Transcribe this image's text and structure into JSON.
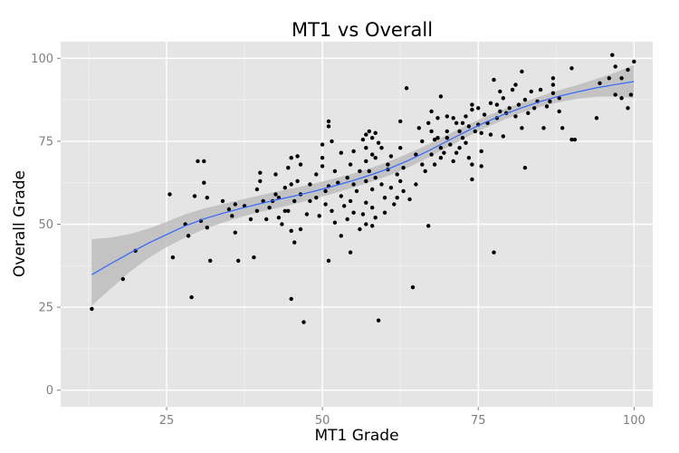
{
  "chart_data": {
    "type": "scatter",
    "title": "MT1 vs Overall",
    "xlabel": "MT1 Grade",
    "ylabel": "Overall Grade",
    "xlim": [
      8,
      103
    ],
    "ylim": [
      -5,
      105
    ],
    "xticks": [
      25,
      50,
      75,
      100
    ],
    "yticks": [
      0,
      25,
      50,
      75,
      100
    ],
    "grid": true,
    "legend": "none",
    "colors": {
      "panel": "#e5e5e5",
      "grid_major": "#ffffff",
      "grid_minor": "#f2f2f2",
      "points": "#000000",
      "smooth_line": "#3366ff",
      "ribbon": "#bdbdbd"
    },
    "points": [
      [
        13,
        24.5
      ],
      [
        18,
        33.5
      ],
      [
        20,
        42
      ],
      [
        25.5,
        59
      ],
      [
        26,
        40
      ],
      [
        28,
        50
      ],
      [
        28.5,
        46.5
      ],
      [
        29,
        28
      ],
      [
        29.5,
        58.5
      ],
      [
        30,
        69
      ],
      [
        30.5,
        51
      ],
      [
        31,
        69
      ],
      [
        31,
        62.5
      ],
      [
        31.5,
        58
      ],
      [
        31.5,
        49
      ],
      [
        32,
        39
      ],
      [
        34,
        57
      ],
      [
        35,
        54.5
      ],
      [
        35.5,
        52.5
      ],
      [
        36,
        47.5
      ],
      [
        36,
        56
      ],
      [
        36.5,
        39
      ],
      [
        37.5,
        55.5
      ],
      [
        38.5,
        51.5
      ],
      [
        39,
        40
      ],
      [
        39.5,
        54
      ],
      [
        39.5,
        60.5
      ],
      [
        40,
        65.5
      ],
      [
        40,
        63
      ],
      [
        40.5,
        57
      ],
      [
        41,
        51.5
      ],
      [
        41.5,
        55
      ],
      [
        42,
        57
      ],
      [
        42.5,
        59
      ],
      [
        42.5,
        65
      ],
      [
        43,
        58
      ],
      [
        43,
        52
      ],
      [
        43.5,
        50
      ],
      [
        44,
        61
      ],
      [
        44,
        54
      ],
      [
        44.5,
        54
      ],
      [
        44.5,
        67
      ],
      [
        45,
        70
      ],
      [
        45,
        62
      ],
      [
        45,
        48
      ],
      [
        45,
        27.5
      ],
      [
        45.5,
        44.5
      ],
      [
        45.5,
        57
      ],
      [
        46,
        70.5
      ],
      [
        46,
        63
      ],
      [
        46.5,
        68
      ],
      [
        46.5,
        59
      ],
      [
        46.5,
        48.5
      ],
      [
        47,
        20.5
      ],
      [
        47.5,
        53
      ],
      [
        48,
        62
      ],
      [
        48,
        57
      ],
      [
        49,
        58
      ],
      [
        49,
        65
      ],
      [
        49.5,
        52.5
      ],
      [
        50,
        74
      ],
      [
        50,
        70
      ],
      [
        50,
        67.5
      ],
      [
        50.5,
        60
      ],
      [
        50.5,
        56
      ],
      [
        51,
        79.5
      ],
      [
        51,
        81
      ],
      [
        51,
        61.5
      ],
      [
        51,
        39
      ],
      [
        51.5,
        75
      ],
      [
        51.5,
        54
      ],
      [
        52,
        66
      ],
      [
        52,
        50.5
      ],
      [
        52.5,
        62.5
      ],
      [
        53,
        71.5
      ],
      [
        53,
        58.5
      ],
      [
        53,
        46.5
      ],
      [
        53.5,
        55.5
      ],
      [
        54,
        64
      ],
      [
        54,
        51.5
      ],
      [
        54.5,
        68
      ],
      [
        54.5,
        57
      ],
      [
        54.5,
        41.5
      ],
      [
        55,
        72
      ],
      [
        55,
        62
      ],
      [
        55,
        53.5
      ],
      [
        55.5,
        60
      ],
      [
        56,
        48.5
      ],
      [
        56,
        66
      ],
      [
        56.5,
        75.5
      ],
      [
        56.5,
        53
      ],
      [
        57,
        77
      ],
      [
        57,
        73
      ],
      [
        57,
        69
      ],
      [
        57,
        63
      ],
      [
        57,
        56.5
      ],
      [
        57,
        50
      ],
      [
        57.5,
        78
      ],
      [
        57.5,
        66
      ],
      [
        58,
        76
      ],
      [
        58,
        71
      ],
      [
        58,
        60.5
      ],
      [
        58,
        55
      ],
      [
        58,
        49.5
      ],
      [
        58.5,
        77.5
      ],
      [
        58.5,
        70
      ],
      [
        58.5,
        64
      ],
      [
        58.5,
        52
      ],
      [
        59,
        74.5
      ],
      [
        59,
        21
      ],
      [
        59.5,
        73
      ],
      [
        59.5,
        62
      ],
      [
        60,
        58
      ],
      [
        60,
        53.5
      ],
      [
        60.5,
        68
      ],
      [
        60.5,
        66.5
      ],
      [
        61,
        70.5
      ],
      [
        61,
        61
      ],
      [
        61.5,
        56
      ],
      [
        62,
        65
      ],
      [
        62,
        58
      ],
      [
        62.5,
        81
      ],
      [
        62.5,
        73
      ],
      [
        62.5,
        63
      ],
      [
        63,
        67
      ],
      [
        63,
        60
      ],
      [
        63.5,
        91
      ],
      [
        64,
        57.5
      ],
      [
        64.5,
        31
      ],
      [
        65,
        71
      ],
      [
        65,
        62
      ],
      [
        65.5,
        79
      ],
      [
        66,
        75
      ],
      [
        66,
        68
      ],
      [
        66.5,
        66
      ],
      [
        67,
        80.5
      ],
      [
        67,
        49.5
      ],
      [
        67.5,
        78
      ],
      [
        67.5,
        71
      ],
      [
        67.5,
        84
      ],
      [
        68,
        75.5
      ],
      [
        68,
        68
      ],
      [
        68.5,
        76
      ],
      [
        68.5,
        82
      ],
      [
        69,
        70
      ],
      [
        69,
        88.5
      ],
      [
        69,
        73
      ],
      [
        69.5,
        71.5
      ],
      [
        70,
        78
      ],
      [
        70,
        82.5
      ],
      [
        70,
        76
      ],
      [
        70.5,
        74
      ],
      [
        71,
        82
      ],
      [
        71,
        69
      ],
      [
        71.5,
        80.5
      ],
      [
        71.5,
        71.5
      ],
      [
        72,
        73
      ],
      [
        72,
        78
      ],
      [
        72.5,
        80.5
      ],
      [
        72.5,
        76
      ],
      [
        73,
        82.5
      ],
      [
        73,
        74.5
      ],
      [
        73.5,
        79.5
      ],
      [
        73.5,
        70
      ],
      [
        74,
        86
      ],
      [
        74,
        84.5
      ],
      [
        74,
        68
      ],
      [
        74,
        63.5
      ],
      [
        74.5,
        78
      ],
      [
        75,
        85
      ],
      [
        75,
        80
      ],
      [
        75.5,
        77.5
      ],
      [
        75.5,
        72
      ],
      [
        75.5,
        67.5
      ],
      [
        76,
        83
      ],
      [
        76.5,
        80.5
      ],
      [
        77,
        86.5
      ],
      [
        77,
        77
      ],
      [
        77.5,
        93.5
      ],
      [
        77.5,
        41.5
      ],
      [
        78,
        86
      ],
      [
        78,
        82
      ],
      [
        78.5,
        90
      ],
      [
        78.5,
        84
      ],
      [
        79,
        88
      ],
      [
        79,
        76.5
      ],
      [
        79.5,
        83.5
      ],
      [
        80,
        85
      ],
      [
        80.5,
        90.5
      ],
      [
        81,
        92
      ],
      [
        81,
        82.5
      ],
      [
        81.5,
        86
      ],
      [
        82,
        96
      ],
      [
        82,
        79
      ],
      [
        82.5,
        87.5
      ],
      [
        82.5,
        67
      ],
      [
        83,
        83.5
      ],
      [
        83.5,
        90
      ],
      [
        84,
        85
      ],
      [
        84.5,
        87
      ],
      [
        85,
        90.5
      ],
      [
        85.5,
        79
      ],
      [
        86,
        85.5
      ],
      [
        86.5,
        87
      ],
      [
        87,
        94
      ],
      [
        87,
        89.5
      ],
      [
        87,
        92
      ],
      [
        88,
        84
      ],
      [
        88,
        88
      ],
      [
        88.5,
        79
      ],
      [
        90,
        97
      ],
      [
        90,
        75.5
      ],
      [
        90.5,
        75.5
      ],
      [
        94,
        82
      ],
      [
        94.5,
        92.5
      ],
      [
        96,
        94
      ],
      [
        96.5,
        101
      ],
      [
        97,
        97.5
      ],
      [
        97,
        89
      ],
      [
        98,
        88
      ],
      [
        98,
        94
      ],
      [
        99,
        85
      ],
      [
        99,
        96.5
      ],
      [
        99.5,
        89
      ],
      [
        100,
        99
      ]
    ],
    "smooth": {
      "x": [
        13,
        16,
        19,
        22,
        25,
        28,
        31,
        34,
        37,
        40,
        43,
        46,
        49,
        52,
        55,
        58,
        61,
        64,
        67,
        70,
        73,
        76,
        79,
        82,
        85,
        88,
        91,
        94,
        97,
        100
      ],
      "y": [
        34.8,
        38.1,
        41.2,
        44.2,
        46.9,
        49.5,
        51.6,
        53.3,
        54.8,
        56.2,
        57.5,
        58.7,
        60.1,
        61.6,
        63.2,
        65.0,
        67.0,
        69.4,
        72.1,
        75.0,
        77.9,
        80.6,
        83.0,
        85.1,
        87.0,
        88.6,
        89.9,
        91.1,
        92.1,
        93.0
      ],
      "lower": [
        25.5,
        30.5,
        35.5,
        39.7,
        43.1,
        46.0,
        48.5,
        50.5,
        52.2,
        53.7,
        55.0,
        56.3,
        57.8,
        59.4,
        61.1,
        62.9,
        64.9,
        67.3,
        70.1,
        73.1,
        76.1,
        78.9,
        81.4,
        83.6,
        85.4,
        86.8,
        87.8,
        88.4,
        88.5,
        88.0
      ],
      "upper": [
        45.5,
        46.0,
        47.0,
        48.6,
        50.7,
        53.0,
        54.7,
        56.1,
        57.4,
        58.7,
        60.0,
        61.1,
        62.4,
        63.8,
        65.3,
        67.1,
        69.1,
        71.5,
        74.1,
        76.9,
        79.7,
        82.3,
        84.6,
        86.6,
        88.6,
        90.4,
        92.0,
        93.8,
        95.7,
        98.0
      ]
    }
  }
}
